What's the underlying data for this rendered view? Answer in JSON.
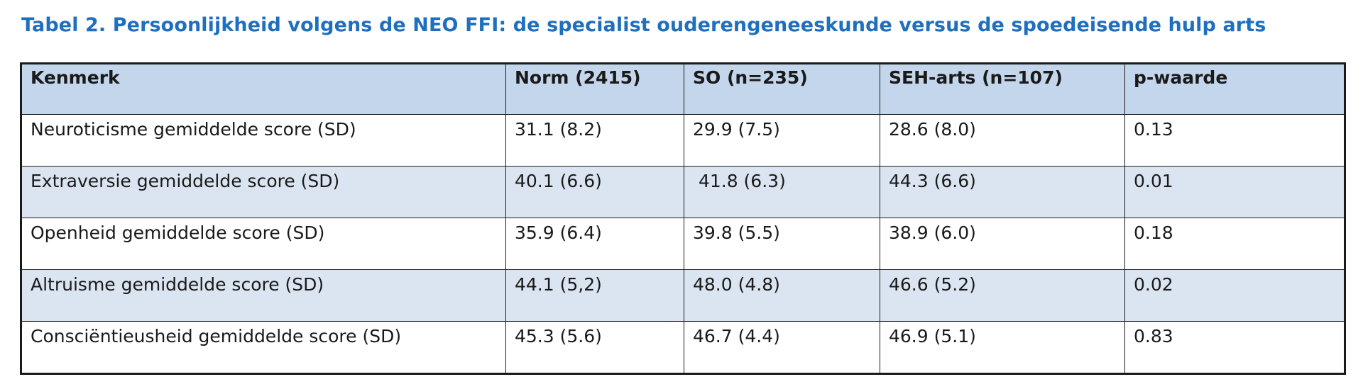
{
  "caption": "Tabel 2.  Persoonlijkheid volgens de NEO FFI: de specialist ouderengeneeskunde versus de spoedeisende hulp arts",
  "colors": {
    "caption": "#1f6fbf",
    "header_bg": "#c4d6ec",
    "shaded_row_bg": "#dbe5f1",
    "border": "#1a1a1a"
  },
  "table": {
    "headers": [
      "Kenmerk",
      "Norm (2415)",
      "SO (n=235)",
      "SEH-arts  (n=107)",
      "p-waarde"
    ],
    "rows": [
      [
        "Neuroticisme gemiddelde score (SD)",
        "31.1 (8.2)",
        "29.9 (7.5)",
        "28.6 (8.0)",
        "0.13"
      ],
      [
        "Extraversie gemiddelde score (SD)",
        "40.1 (6.6)",
        " 41.8 (6.3)",
        "44.3 (6.6)",
        "0.01"
      ],
      [
        "Openheid gemiddelde score (SD)",
        "35.9 (6.4)",
        "39.8 (5.5)",
        "38.9 (6.0)",
        "0.18"
      ],
      [
        "Altruisme gemiddelde score (SD)",
        "44.1 (5,2)",
        "48.0 (4.8)",
        "46.6 (5.2)",
        "0.02"
      ],
      [
        "Consciëntieusheid gemiddelde score (SD)",
        "45.3 (5.6)",
        "46.7 (4.4)",
        "46.9 (5.1)",
        "0.83"
      ]
    ]
  }
}
